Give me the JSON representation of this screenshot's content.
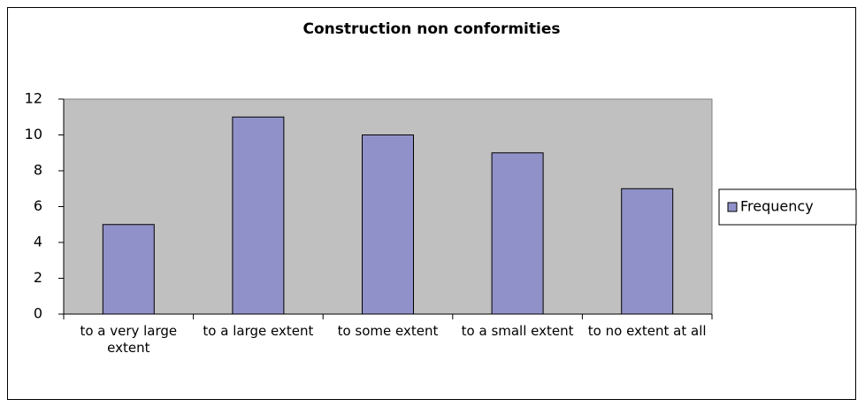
{
  "chart_data": {
    "type": "bar",
    "title": "Construction non conformities",
    "categories": [
      "to a very large extent",
      "to a large extent",
      "to some extent",
      "to a small extent",
      "to no extent at all"
    ],
    "series": [
      {
        "name": "Frequency",
        "color": "#9191c9",
        "values": [
          5,
          11,
          10,
          9,
          7
        ]
      }
    ],
    "ylim": [
      0,
      12
    ],
    "yticks": [
      0,
      2,
      4,
      6,
      8,
      10,
      12
    ],
    "grid": false,
    "legend": "right"
  }
}
